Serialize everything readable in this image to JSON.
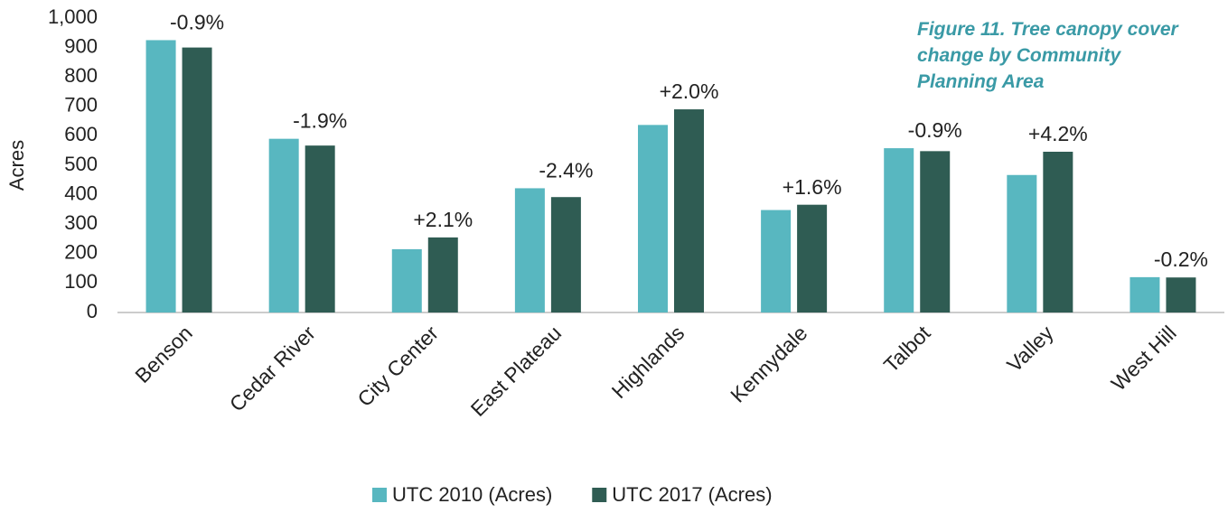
{
  "chart_data": {
    "type": "bar",
    "title": "Figure 11. Tree canopy cover change by Community Planning Area",
    "y_label": "Acres",
    "categories": [
      "Benson",
      "Cedar River",
      "City Center",
      "East Plateau",
      "Highlands",
      "Kennydale",
      "Talbot",
      "Valley",
      "West Hill"
    ],
    "series": [
      {
        "name": "UTC 2010 (Acres)",
        "color": "#58b7c0",
        "values": [
          925,
          590,
          215,
          422,
          637,
          348,
          558,
          467,
          120
        ]
      },
      {
        "name": "UTC 2017 (Acres)",
        "color": "#2f5c53",
        "values": [
          900,
          567,
          255,
          392,
          690,
          366,
          548,
          546,
          119
        ]
      }
    ],
    "annotations": [
      "-0.9%",
      "-1.9%",
      "+2.1%",
      "-2.4%",
      "+2.0%",
      "+1.6%",
      "-0.9%",
      "+4.2%",
      "-0.2%"
    ],
    "ylim": [
      0,
      1000
    ],
    "yticks": [
      0,
      100,
      200,
      300,
      400,
      500,
      600,
      700,
      800,
      900,
      {
        "value": 1000,
        "label": "1,000"
      }
    ],
    "grid": false,
    "legend": "bottom"
  }
}
